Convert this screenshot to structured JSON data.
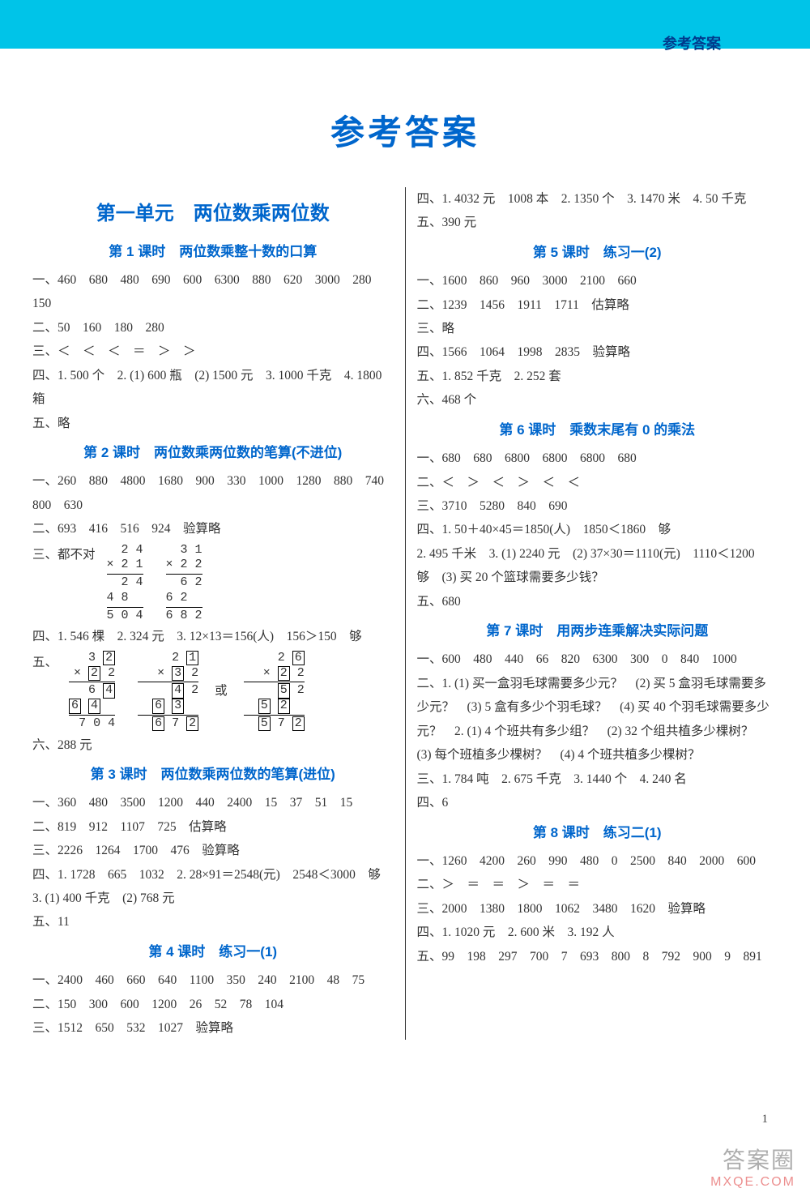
{
  "header_label": "参考答案",
  "main_title": "参考答案",
  "page_number": "1",
  "watermark": {
    "line1": "答案圈",
    "line2": "MXQE.COM"
  },
  "left": {
    "unit": "第一单元　两位数乘两位数",
    "l1": {
      "title": "第 1 课时　两位数乘整十数的口算",
      "a1": "一、460　680　480　690　600　6300　880　620　3000　280　150",
      "a2": "二、50　160　180　280",
      "a3": "三、＜　＜　＜　＝　＞　＞",
      "a4": "四、1. 500 个　2. (1) 600 瓶　(2) 1500 元　3. 1000 千克　4. 1800 箱",
      "a5": "五、略"
    },
    "l2": {
      "title": "第 2 课时　两位数乘两位数的笔算(不进位)",
      "a1": "一、260　880　4800　1680　900　330　1000　1280　880　740　800　630",
      "a2": "二、693　416　516　924　验算略",
      "a3pre": "三、都不对",
      "a4": "四、1. 546 棵　2. 324 元　3. 12×13＝156(人)　156＞150　够",
      "a5pre": "五、",
      "a6": "六、288 元"
    },
    "l3": {
      "title": "第 3 课时　两位数乘两位数的笔算(进位)",
      "a1": "一、360　480　3500　1200　440　2400　15　37　51　15",
      "a2": "二、819　912　1107　725　估算略",
      "a3": "三、2226　1264　1700　476　验算略",
      "a4": "四、1. 1728　665　1032　2. 28×91＝2548(元)　2548＜3000　够",
      "a4b": "3. (1) 400 千克　(2) 768 元",
      "a5": "五、11"
    },
    "l4": {
      "title": "第 4 课时　练习一(1)",
      "a1": "一、2400　460　660　640　1100　350　240　2100　48　75",
      "a2": "二、150　300　600　1200　26　52　78　104",
      "a3": "三、1512　650　532　1027　验算略"
    }
  },
  "right": {
    "topA": "四、1. 4032 元　1008 本　2. 1350 个　3. 1470 米　4. 50 千克",
    "topB": "五、390 元",
    "l5": {
      "title": "第 5 课时　练习一(2)",
      "a1": "一、1600　860　960　3000　2100　660",
      "a2": "二、1239　1456　1911　1711　估算略",
      "a3": "三、略",
      "a4": "四、1566　1064　1998　2835　验算略",
      "a5": "五、1. 852 千克　2. 252 套",
      "a6": "六、468 个"
    },
    "l6": {
      "title": "第 6 课时　乘数末尾有 0 的乘法",
      "a1": "一、680　680　6800　6800　6800　680",
      "a2": "二、＜　＞　＜　＞　＜　＜",
      "a3": "三、3710　5280　840　690",
      "a4": "四、1. 50＋40×45＝1850(人)　1850＜1860　够",
      "a4b": "2. 495 千米　3. (1) 2240 元　(2) 37×30＝1110(元)　1110＜1200　够　(3) 买 20 个篮球需要多少钱？",
      "a5": "五、680"
    },
    "l7": {
      "title": "第 7 课时　用两步连乘解决实际问题",
      "a1": "一、600　480　440　66　820　6300　300　0　840　1000",
      "a2": "二、1. (1) 买一盒羽毛球需要多少元？　(2) 买 5 盒羽毛球需要多少元？　(3) 5 盒有多少个羽毛球？　(4) 买 40 个羽毛球需要多少元？　2. (1) 4 个班共有多少组？　(2) 32 个组共植多少棵树？　(3) 每个班植多少棵树？　(4) 4 个班共植多少棵树？",
      "a3": "三、1. 784 吨　2. 675 千克　3. 1440 个　4. 240 名",
      "a4": "四、6"
    },
    "l8": {
      "title": "第 8 课时　练习二(1)",
      "a1": "一、1260　4200　260　990　480　0　2500　840　2000　600",
      "a2": "二、＞　＝　＝　＞　＝　＝",
      "a3": "三、2000　1380　1800　1062　3480　1620　验算略",
      "a4": "四、1. 1020 元　2. 600 米　3. 192 人",
      "a5": "五、99　198　297　700　7　693　800　8　792　900　9　891"
    }
  }
}
